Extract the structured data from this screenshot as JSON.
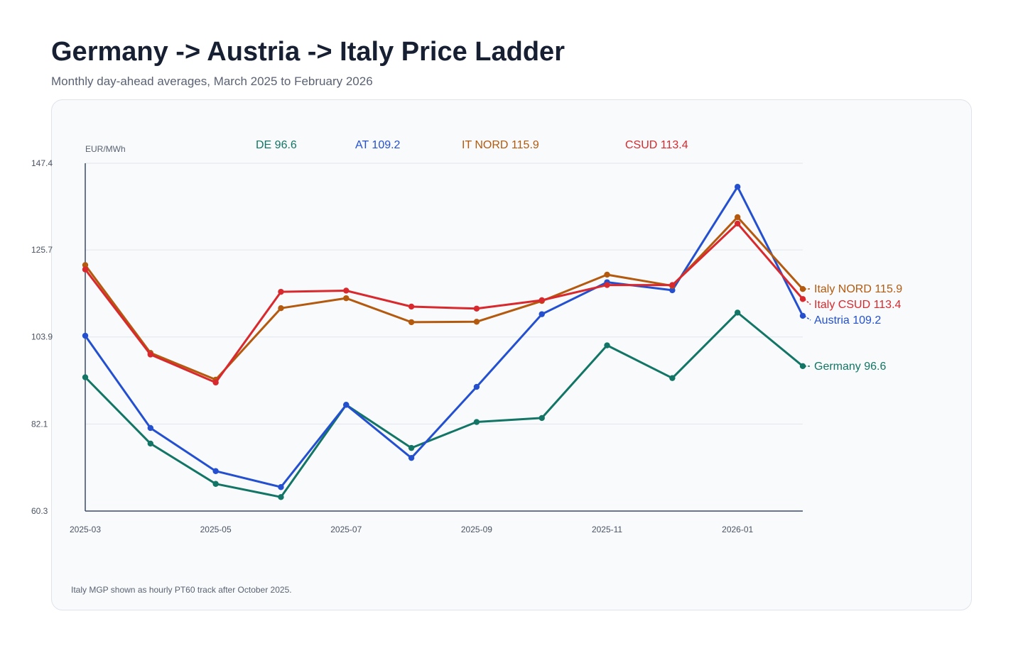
{
  "header": {
    "title": "Germany -> Austria -> Italy Price Ladder",
    "subtitle": "Monthly day-ahead averages, March 2025 to February 2026"
  },
  "footnote": "Italy MGP shown as hourly PT60 track after October 2025.",
  "chart_data": {
    "type": "line",
    "title": "Germany -> Austria -> Italy Price Ladder",
    "subtitle": "Monthly day-ahead averages, March 2025 to February 2026",
    "xlabel": "",
    "ylabel": "EUR/MWh",
    "x": [
      "2025-03",
      "2025-04",
      "2025-05",
      "2025-06",
      "2025-07",
      "2025-08",
      "2025-09",
      "2025-10",
      "2025-11",
      "2025-12",
      "2026-01",
      "2026-02"
    ],
    "xtick_labels": [
      "2025-03",
      "2025-05",
      "2025-07",
      "2025-09",
      "2025-11",
      "2026-01"
    ],
    "xtick_indices": [
      0,
      2,
      4,
      6,
      8,
      10
    ],
    "yticks": [
      "147.4",
      "125.7",
      "103.9",
      "82.1",
      "60.3"
    ],
    "ylim": [
      60.3,
      147.4
    ],
    "grid": true,
    "series": [
      {
        "name": "Germany",
        "color": "#137565",
        "values": [
          93.8,
          77.2,
          67.1,
          63.8,
          86.9,
          76.1,
          82.6,
          83.6,
          101.8,
          93.6,
          110.0,
          96.6
        ],
        "end_label": "Germany 96.6"
      },
      {
        "name": "Austria",
        "color": "#2450d0",
        "values": [
          104.2,
          81.1,
          70.3,
          66.3,
          86.9,
          73.6,
          91.4,
          109.6,
          117.6,
          115.6,
          141.5,
          109.2
        ],
        "end_label": "Austria 109.2"
      },
      {
        "name": "Italy NORD",
        "color": "#b45a0f",
        "values": [
          121.9,
          99.9,
          93.2,
          111.1,
          113.6,
          107.6,
          107.7,
          112.9,
          119.5,
          116.7,
          133.9,
          115.9
        ],
        "end_label": "Italy NORD 115.9"
      },
      {
        "name": "Italy CSUD",
        "color": "#d82a2e",
        "values": [
          120.8,
          99.5,
          92.5,
          115.2,
          115.5,
          111.5,
          111.0,
          113.1,
          116.9,
          116.9,
          132.3,
          113.4
        ],
        "end_label": "Italy CSUD 113.4"
      }
    ],
    "top_labels": [
      {
        "text": "DE 96.6",
        "color": "#137565"
      },
      {
        "text": "AT 109.2",
        "color": "#2450d0"
      },
      {
        "text": "IT NORD 115.9",
        "color": "#b45a0f"
      },
      {
        "text": "CSUD 113.4",
        "color": "#d82a2e"
      }
    ],
    "colors": {
      "axis": "#3b4a6b",
      "grid": "#e1e5ec",
      "tick_text": "#4b5363",
      "unit_text": "#5a6272"
    }
  }
}
